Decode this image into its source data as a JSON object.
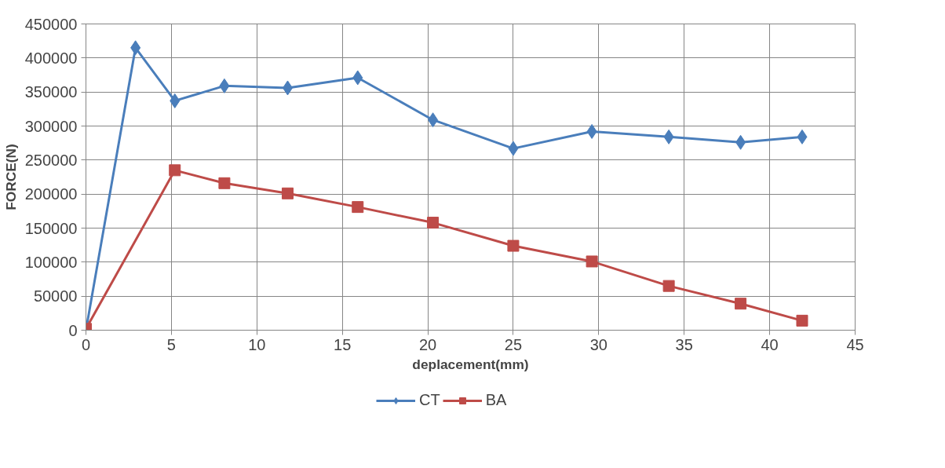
{
  "chart_data": {
    "type": "line",
    "xlabel": "deplacement(mm)",
    "ylabel": "FORCE(N)",
    "xlim": [
      0,
      45
    ],
    "xticks": [
      0,
      5,
      10,
      15,
      20,
      25,
      30,
      35,
      40,
      45
    ],
    "ylim": [
      0,
      450000
    ],
    "yticks": [
      0,
      50000,
      100000,
      150000,
      200000,
      250000,
      300000,
      350000,
      400000,
      450000
    ],
    "grid": true,
    "legend": "bottom",
    "series": [
      {
        "name": "CT",
        "color": "#4a7ebb",
        "marker": "diamond",
        "x": [
          0,
          2.9,
          5.2,
          8.1,
          11.8,
          15.9,
          20.3,
          25,
          29.6,
          34.1,
          38.3,
          41.9
        ],
        "values": [
          0,
          415000,
          337000,
          359000,
          356000,
          371000,
          309000,
          267000,
          292000,
          284000,
          276000,
          284000
        ]
      },
      {
        "name": "BA",
        "color": "#be4b48",
        "marker": "square",
        "x": [
          0,
          5.2,
          8.1,
          11.8,
          15.9,
          20.3,
          25,
          29.6,
          34.1,
          38.3,
          41.9
        ],
        "values": [
          2000,
          235000,
          216000,
          201000,
          181000,
          158000,
          124000,
          101000,
          65000,
          39000,
          14000
        ]
      }
    ]
  }
}
